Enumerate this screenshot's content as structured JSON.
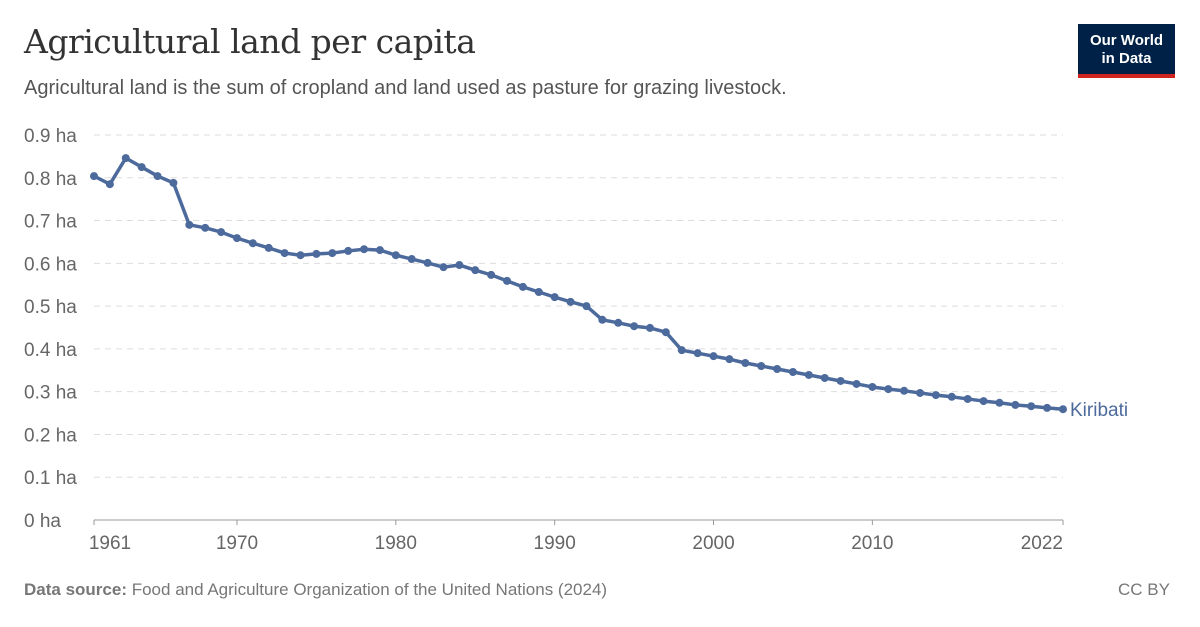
{
  "header": {
    "title": "Agricultural land per capita",
    "subtitle": "Agricultural land is the sum of cropland and land used as pasture for grazing livestock.",
    "logo_line1": "Our World",
    "logo_line2": "in Data"
  },
  "footer": {
    "source_label": "Data source:",
    "source_text": "Food and Agriculture Organization of the United Nations (2024)",
    "license": "CC BY"
  },
  "chart_data": {
    "type": "line",
    "title": "Agricultural land per capita",
    "xlabel": "",
    "ylabel": "",
    "ylim": [
      0,
      0.9
    ],
    "xlim": [
      1961,
      2022
    ],
    "y_ticks": [
      0,
      0.1,
      0.2,
      0.3,
      0.4,
      0.5,
      0.6,
      0.7,
      0.8,
      0.9
    ],
    "y_tick_labels": [
      "0 ha",
      "0.1 ha",
      "0.2 ha",
      "0.3 ha",
      "0.4 ha",
      "0.5 ha",
      "0.6 ha",
      "0.7 ha",
      "0.8 ha",
      "0.9 ha"
    ],
    "x_ticks": [
      1961,
      1970,
      1980,
      1990,
      2000,
      2010,
      2022
    ],
    "x_tick_labels": [
      "1961",
      "1970",
      "1980",
      "1990",
      "2000",
      "2010",
      "2022"
    ],
    "grid": "horizontal dashed",
    "series": [
      {
        "name": "Kiribati",
        "color": "#4c6a9c",
        "x": [
          1961,
          1962,
          1963,
          1964,
          1965,
          1966,
          1967,
          1968,
          1969,
          1970,
          1971,
          1972,
          1973,
          1974,
          1975,
          1976,
          1977,
          1978,
          1979,
          1980,
          1981,
          1982,
          1983,
          1984,
          1985,
          1986,
          1987,
          1988,
          1989,
          1990,
          1991,
          1992,
          1993,
          1994,
          1995,
          1996,
          1997,
          1998,
          1999,
          2000,
          2001,
          2002,
          2003,
          2004,
          2005,
          2006,
          2007,
          2008,
          2009,
          2010,
          2011,
          2012,
          2013,
          2014,
          2015,
          2016,
          2017,
          2018,
          2019,
          2020,
          2021,
          2022
        ],
        "values": [
          0.804,
          0.785,
          0.846,
          0.825,
          0.804,
          0.788,
          0.69,
          0.683,
          0.673,
          0.659,
          0.647,
          0.636,
          0.624,
          0.619,
          0.622,
          0.624,
          0.629,
          0.633,
          0.631,
          0.619,
          0.61,
          0.601,
          0.591,
          0.596,
          0.584,
          0.573,
          0.559,
          0.545,
          0.533,
          0.521,
          0.51,
          0.5,
          0.468,
          0.461,
          0.453,
          0.449,
          0.439,
          0.397,
          0.39,
          0.383,
          0.376,
          0.367,
          0.36,
          0.353,
          0.346,
          0.339,
          0.332,
          0.325,
          0.318,
          0.311,
          0.306,
          0.302,
          0.297,
          0.292,
          0.288,
          0.283,
          0.278,
          0.274,
          0.269,
          0.266,
          0.262,
          0.259
        ]
      }
    ]
  }
}
